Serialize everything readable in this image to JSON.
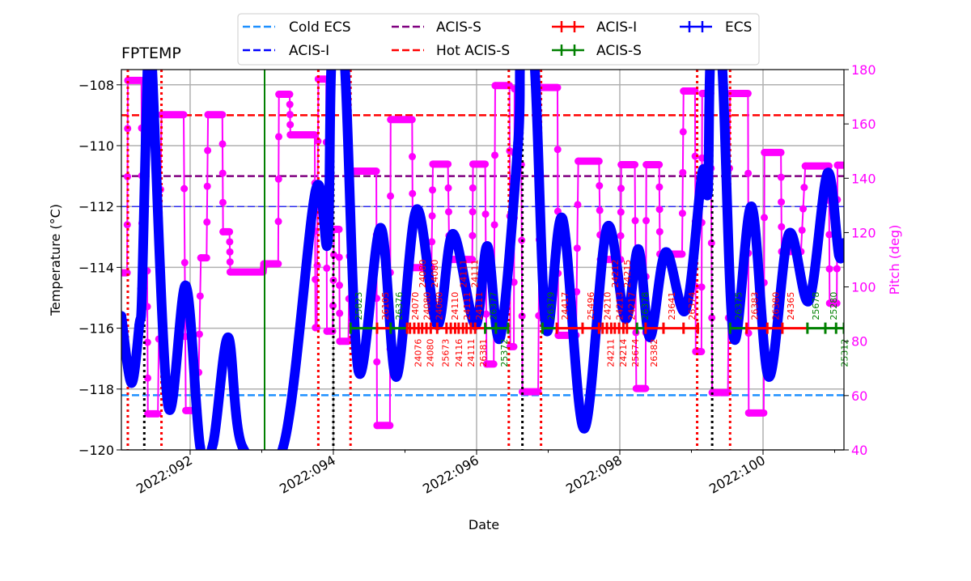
{
  "chart_data": {
    "type": "line",
    "title": "FPTEMP",
    "xlabel": "Date",
    "ylabel": "Temperature (°C)",
    "ylabel_right": "Pitch (deg)",
    "xlim": [
      "2022:091.04",
      "2022:101.13"
    ],
    "ylim": [
      -120,
      -107.5
    ],
    "ylim_right": [
      40,
      180
    ],
    "grid": true,
    "legend_placement": "top-center, above plot",
    "xticks": [
      "2022:092",
      "2022:094",
      "2022:096",
      "2022:098",
      "2022:100"
    ],
    "xticks_minor": [
      "2022:093",
      "2022:095",
      "2022:097",
      "2022:099",
      "2022:101"
    ],
    "yticks": [
      -120,
      -118,
      -116,
      -114,
      -112,
      -110,
      -108
    ],
    "yticks_right": [
      40,
      60,
      80,
      100,
      120,
      140,
      160,
      180
    ],
    "colors": {
      "temperature": "#0000ff",
      "pitch": "#ff00ff",
      "acis_i_obs": "#ff0000",
      "acis_s_obs": "#008000",
      "grid": "#b0b0b0",
      "right_axis": "#ff00ff"
    },
    "limit_lines": [
      {
        "label": "Cold ECS",
        "value": -118.2,
        "color": "#1e90ff",
        "style": "dashed"
      },
      {
        "label": "ACIS-I",
        "value": -112.0,
        "color": "#0000ff",
        "style": "dashed"
      },
      {
        "label": "ACIS-S",
        "value": -111.0,
        "color": "#800080",
        "style": "dashed"
      },
      {
        "label": "Hot ACIS-S",
        "value": -109.0,
        "color": "#ff0000",
        "style": "dashed"
      }
    ],
    "legend": [
      {
        "label": "Cold ECS",
        "kind": "dashed",
        "color": "#1e90ff"
      },
      {
        "label": "ACIS-I",
        "kind": "dashed",
        "color": "#0000ff"
      },
      {
        "label": "ACIS-S",
        "kind": "dashed",
        "color": "#800080"
      },
      {
        "label": "Hot ACIS-S",
        "kind": "dashed",
        "color": "#ff0000"
      },
      {
        "label": "ACIS-I",
        "kind": "errorbar",
        "color": "#ff0000"
      },
      {
        "label": "ACIS-S",
        "kind": "errorbar",
        "color": "#008000"
      },
      {
        "label": "ECS",
        "kind": "errorbar",
        "color": "#0000ff"
      }
    ],
    "temperature": [
      [
        "2022:091.04",
        -115.6
      ],
      [
        "2022:091.18",
        -117.8
      ],
      [
        "2022:091.29",
        -115.9
      ],
      [
        "2022:091.33",
        -114.7
      ],
      [
        "2022:091.41",
        -107.0
      ],
      [
        "2022:091.46",
        -107.0
      ],
      [
        "2022:091.69",
        -118.5
      ],
      [
        "2022:091.94",
        -114.6
      ],
      [
        "2022:092.14",
        -119.9
      ],
      [
        "2022:092.32",
        -119.8
      ],
      [
        "2022:092.53",
        -116.3
      ],
      [
        "2022:092.73",
        -119.9
      ],
      [
        "2022:093.30",
        -119.9
      ],
      [
        "2022:093.75",
        -111.5
      ],
      [
        "2022:093.92",
        -113.2
      ],
      [
        "2022:093.98",
        -107.0
      ],
      [
        "2022:094.15",
        -107.0
      ],
      [
        "2022:094.35",
        -117.4
      ],
      [
        "2022:094.66",
        -112.7
      ],
      [
        "2022:094.88",
        -117.6
      ],
      [
        "2022:095.16",
        -112.1
      ],
      [
        "2022:095.45",
        -115.9
      ],
      [
        "2022:095.67",
        -112.9
      ],
      [
        "2022:095.98",
        -115.9
      ],
      [
        "2022:096.15",
        -113.3
      ],
      [
        "2022:096.33",
        -116.3
      ],
      [
        "2022:096.58",
        -109.9
      ],
      [
        "2022:096.62",
        -107.0
      ],
      [
        "2022:096.80",
        -107.0
      ],
      [
        "2022:096.97",
        -116.0
      ],
      [
        "2022:097.20",
        -112.4
      ],
      [
        "2022:097.50",
        -119.3
      ],
      [
        "2022:097.82",
        -112.7
      ],
      [
        "2022:098.08",
        -115.7
      ],
      [
        "2022:098.26",
        -113.4
      ],
      [
        "2022:098.42",
        -116.3
      ],
      [
        "2022:098.64",
        -113.5
      ],
      [
        "2022:098.92",
        -115.4
      ],
      [
        "2022:099.15",
        -110.9
      ],
      [
        "2022:099.23",
        -111.5
      ],
      [
        "2022:099.27",
        -107.0
      ],
      [
        "2022:099.42",
        -107.0
      ],
      [
        "2022:099.59",
        -116.3
      ],
      [
        "2022:099.84",
        -112.0
      ],
      [
        "2022:100.08",
        -117.6
      ],
      [
        "2022:100.36",
        -112.9
      ],
      [
        "2022:100.64",
        -115.1
      ],
      [
        "2022:100.90",
        -110.9
      ],
      [
        "2022:101.06",
        -113.6
      ],
      [
        "2022:101.13",
        -113.2
      ]
    ],
    "pitch_steps": [
      [
        "2022:091.04",
        "2022:091.12",
        105.2
      ],
      [
        "2022:091.13",
        "2022:091.32",
        176.0
      ],
      [
        "2022:091.33",
        "2022:091.40",
        105.9
      ],
      [
        "2022:091.41",
        "2022:091.55",
        53.3
      ],
      [
        "2022:091.60",
        "2022:091.91",
        163.4
      ],
      [
        "2022:091.94",
        "2022:092.11",
        54.5
      ],
      [
        "2022:092.15",
        "2022:092.23",
        110.7
      ],
      [
        "2022:092.25",
        "2022:092.45",
        163.4
      ],
      [
        "2022:092.46",
        "2022:092.55",
        120.3
      ],
      [
        "2022:092.56",
        "2022:093.02",
        105.5
      ],
      [
        "2022:093.03",
        "2022:093.23",
        108.5
      ],
      [
        "2022:093.24",
        "2022:093.39",
        170.9
      ],
      [
        "2022:093.40",
        "2022:093.74",
        156.0
      ],
      [
        "2022:093.75",
        "2022:093.77",
        85.0
      ],
      [
        "2022:093.79",
        "2022:093.90",
        176.5
      ],
      [
        "2022:093.91",
        "2022:093.99",
        83.7
      ],
      [
        "2022:094.01",
        "2022:094.08",
        121.2
      ],
      [
        "2022:094.09",
        "2022:094.21",
        80.0
      ],
      [
        "2022:094.24",
        "2022:094.60",
        142.6
      ],
      [
        "2022:094.61",
        "2022:094.79",
        49.0
      ],
      [
        "2022:094.80",
        "2022:095.10",
        161.6
      ],
      [
        "2022:095.11",
        "2022:095.37",
        107.1
      ],
      [
        "2022:095.39",
        "2022:095.60",
        145.2
      ],
      [
        "2022:095.62",
        "2022:095.94",
        110.1
      ],
      [
        "2022:095.95",
        "2022:096.12",
        145.2
      ],
      [
        "2022:096.14",
        "2022:096.24",
        71.6
      ],
      [
        "2022:096.26",
        "2022:096.46",
        174.1
      ],
      [
        "2022:096.47",
        "2022:096.52",
        78.0
      ],
      [
        "2022:096.53",
        "2022:096.62",
        172.9
      ],
      [
        "2022:096.64",
        "2022:096.86",
        61.4
      ],
      [
        "2022:096.89",
        "2022:097.13",
        173.4
      ],
      [
        "2022:097.14",
        "2022:097.39",
        82.2
      ],
      [
        "2022:097.42",
        "2022:097.71",
        146.3
      ],
      [
        "2022:097.73",
        "2022:098.01",
        110.1
      ],
      [
        "2022:098.02",
        "2022:098.21",
        145.0
      ],
      [
        "2022:098.23",
        "2022:098.36",
        62.6
      ],
      [
        "2022:098.37",
        "2022:098.55",
        145.0
      ],
      [
        "2022:098.56",
        "2022:098.87",
        112.1
      ],
      [
        "2022:098.89",
        "2022:099.05",
        172.1
      ],
      [
        "2022:099.06",
        "2022:099.14",
        76.2
      ],
      [
        "2022:099.15",
        "2022:099.27",
        171.2
      ],
      [
        "2022:099.29",
        "2022:099.51",
        61.1
      ],
      [
        "2022:099.54",
        "2022:099.79",
        171.2
      ],
      [
        "2022:099.80",
        "2022:100.01",
        53.6
      ],
      [
        "2022:100.02",
        "2022:100.25",
        149.5
      ],
      [
        "2022:100.26",
        "2022:100.53",
        113.0
      ],
      [
        "2022:100.59",
        "2022:100.92",
        144.5
      ],
      [
        "2022:100.93",
        "2022:101.03",
        94.0
      ],
      [
        "2022:101.04",
        "2022:101.13",
        144.8
      ]
    ],
    "obsid_level": -116,
    "obsids": [
      {
        "obsid": "25823",
        "instrument": "ACIS-S",
        "start": "2022:094.24"
      },
      {
        "obsid": "26105",
        "instrument": "ACIS-I",
        "start": "2022:094.61"
      },
      {
        "obsid": "26376",
        "instrument": "ACIS-S",
        "start": "2022:094.80"
      },
      {
        "obsid": "24070",
        "instrument": "ACIS-I",
        "start": "2022:095.03"
      },
      {
        "obsid": "24076",
        "instrument": "ACIS-I",
        "start": "2022:095.07"
      },
      {
        "obsid": "24080",
        "instrument": "ACIS-I",
        "start": "2022:095.13"
      },
      {
        "obsid": "24080",
        "instrument": "ACIS-I",
        "start": "2022:095.19"
      },
      {
        "obsid": "24080",
        "instrument": "ACIS-I",
        "start": "2022:095.24"
      },
      {
        "obsid": "24080",
        "instrument": "ACIS-I",
        "start": "2022:095.30"
      },
      {
        "obsid": "24080",
        "instrument": "ACIS-I",
        "start": "2022:095.36"
      },
      {
        "obsid": "25673",
        "instrument": "ACIS-I",
        "start": "2022:095.45"
      },
      {
        "obsid": "24110",
        "instrument": "ACIS-I",
        "start": "2022:095.58"
      },
      {
        "obsid": "24116",
        "instrument": "ACIS-I",
        "start": "2022:095.64"
      },
      {
        "obsid": "24111",
        "instrument": "ACIS-I",
        "start": "2022:095.70"
      },
      {
        "obsid": "24111",
        "instrument": "ACIS-I",
        "start": "2022:095.75"
      },
      {
        "obsid": "24111",
        "instrument": "ACIS-I",
        "start": "2022:095.81"
      },
      {
        "obsid": "24111",
        "instrument": "ACIS-I",
        "start": "2022:095.86"
      },
      {
        "obsid": "24111",
        "instrument": "ACIS-I",
        "start": "2022:095.92"
      },
      {
        "obsid": "26381",
        "instrument": "ACIS-I",
        "start": "2022:095.98"
      },
      {
        "obsid": "26377",
        "instrument": "ACIS-S",
        "start": "2022:096.12"
      },
      {
        "obsid": "25372",
        "instrument": "ACIS-S",
        "start": "2022:096.27",
        "stop": "2022:096.44"
      },
      {
        "obsid": "26379",
        "instrument": "ACIS-S",
        "start": "2022:096.92"
      },
      {
        "obsid": "24417",
        "instrument": "ACIS-I",
        "start": "2022:097.12"
      },
      {
        "obsid": "25496",
        "instrument": "ACIS-I",
        "start": "2022:097.48"
      },
      {
        "obsid": "24210",
        "instrument": "ACIS-I",
        "start": "2022:097.71"
      },
      {
        "obsid": "24211",
        "instrument": "ACIS-I",
        "start": "2022:097.76"
      },
      {
        "obsid": "24212",
        "instrument": "ACIS-I",
        "start": "2022:097.82"
      },
      {
        "obsid": "24213",
        "instrument": "ACIS-I",
        "start": "2022:097.88"
      },
      {
        "obsid": "24214",
        "instrument": "ACIS-I",
        "start": "2022:097.93"
      },
      {
        "obsid": "24215",
        "instrument": "ACIS-I",
        "start": "2022:097.99"
      },
      {
        "obsid": "24217",
        "instrument": "ACIS-I",
        "start": "2022:098.05"
      },
      {
        "obsid": "25674",
        "instrument": "ACIS-I",
        "start": "2022:098.10"
      },
      {
        "obsid": "26378",
        "instrument": "ACIS-S",
        "start": "2022:098.24"
      },
      {
        "obsid": "26382",
        "instrument": "ACIS-I",
        "start": "2022:098.36"
      },
      {
        "obsid": "23641",
        "instrument": "ACIS-I",
        "start": "2022:098.61"
      },
      {
        "obsid": "26374",
        "instrument": "ACIS-I",
        "start": "2022:098.89",
        "stop": "2022:099.09"
      },
      {
        "obsid": "26375",
        "instrument": "ACIS-S",
        "start": "2022:099.54"
      },
      {
        "obsid": "26383",
        "instrument": "ACIS-I",
        "start": "2022:099.77"
      },
      {
        "obsid": "26380",
        "instrument": "ACIS-I",
        "start": "2022:100.06"
      },
      {
        "obsid": "24365",
        "instrument": "ACIS-I",
        "start": "2022:100.27"
      },
      {
        "obsid": "25678",
        "instrument": "ACIS-S",
        "start": "2022:100.62"
      },
      {
        "obsid": "25280",
        "instrument": "ACIS-S",
        "start": "2022:100.87"
      },
      {
        "obsid": "25312",
        "instrument": "ACIS-S",
        "start": "2022:101.02",
        "stop": "2022:101.13"
      }
    ],
    "vlines": [
      {
        "x": "2022:091.36",
        "color": "#000000",
        "style": "dotted"
      },
      {
        "x": "2022:094.00",
        "color": "#000000",
        "style": "dotted"
      },
      {
        "x": "2022:096.64",
        "color": "#000000",
        "style": "dotted"
      },
      {
        "x": "2022:099.29",
        "color": "#000000",
        "style": "dotted"
      },
      {
        "x": "2022:091.13",
        "color": "#ff0000",
        "style": "dotted"
      },
      {
        "x": "2022:091.60",
        "color": "#ff0000",
        "style": "dotted"
      },
      {
        "x": "2022:093.79",
        "color": "#ff0000",
        "style": "dotted"
      },
      {
        "x": "2022:094.24",
        "color": "#ff0000",
        "style": "dotted"
      },
      {
        "x": "2022:096.45",
        "color": "#ff0000",
        "style": "dotted"
      },
      {
        "x": "2022:096.90",
        "color": "#ff0000",
        "style": "dotted"
      },
      {
        "x": "2022:099.08",
        "color": "#ff0000",
        "style": "dotted"
      },
      {
        "x": "2022:099.54",
        "color": "#ff0000",
        "style": "dotted"
      },
      {
        "x": "2022:093.04",
        "color": "#008000",
        "style": "solid"
      }
    ]
  }
}
